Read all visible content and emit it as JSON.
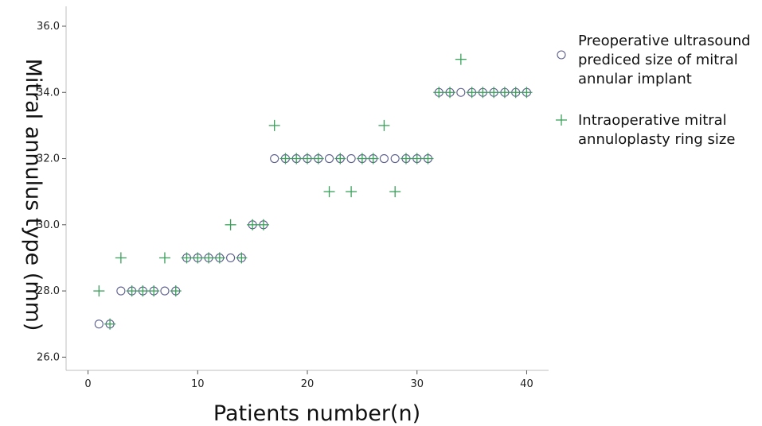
{
  "chart_data": {
    "type": "scatter",
    "title": "",
    "xlabel": "Patients number(n)",
    "ylabel": "Mitral annulus type (mm)",
    "xlim": [
      -2,
      42
    ],
    "ylim": [
      25.6,
      36.6
    ],
    "xticks": [
      0,
      10,
      20,
      30,
      40
    ],
    "xtick_labels": [
      "0",
      "10",
      "20",
      "30",
      "40"
    ],
    "yticks": [
      26,
      28,
      30,
      32,
      34,
      36
    ],
    "ytick_labels": [
      "26.0",
      "28.0",
      "30.0",
      "32.0",
      "34.0",
      "36.0"
    ],
    "grid": false,
    "legend_position": "right",
    "x": [
      1,
      2,
      3,
      4,
      5,
      6,
      7,
      8,
      9,
      10,
      11,
      12,
      13,
      14,
      15,
      16,
      17,
      18,
      19,
      20,
      21,
      22,
      23,
      24,
      25,
      26,
      27,
      28,
      29,
      30,
      31,
      32,
      33,
      34,
      35,
      36,
      37,
      38,
      39,
      40
    ],
    "series": [
      {
        "name": "Preoperative ultrasound prediced size of mitral annular implant",
        "legend_lines": [
          "Preoperative ultrasound",
          "prediced size of mitral",
          "annular implant"
        ],
        "marker": "circle-icon",
        "color": "#5a5e8c",
        "values": [
          27,
          27,
          28,
          28,
          28,
          28,
          28,
          28,
          29,
          29,
          29,
          29,
          29,
          29,
          30,
          30,
          32,
          32,
          32,
          32,
          32,
          32,
          32,
          32,
          32,
          32,
          32,
          32,
          32,
          32,
          32,
          34,
          34,
          34,
          34,
          34,
          34,
          34,
          34,
          34
        ]
      },
      {
        "name": "Intraoperative mitral annuloplasty ring size",
        "legend_lines": [
          "Intraoperative mitral",
          "annuloplasty ring size"
        ],
        "marker": "plus-icon",
        "color": "#3aa15a",
        "values": [
          28,
          27,
          29,
          28,
          28,
          28,
          29,
          28,
          29,
          29,
          29,
          29,
          30,
          29,
          30,
          30,
          33,
          32,
          32,
          32,
          32,
          31,
          32,
          31,
          32,
          32,
          33,
          31,
          32,
          32,
          32,
          34,
          34,
          35,
          34,
          34,
          34,
          34,
          34,
          34
        ]
      }
    ]
  }
}
